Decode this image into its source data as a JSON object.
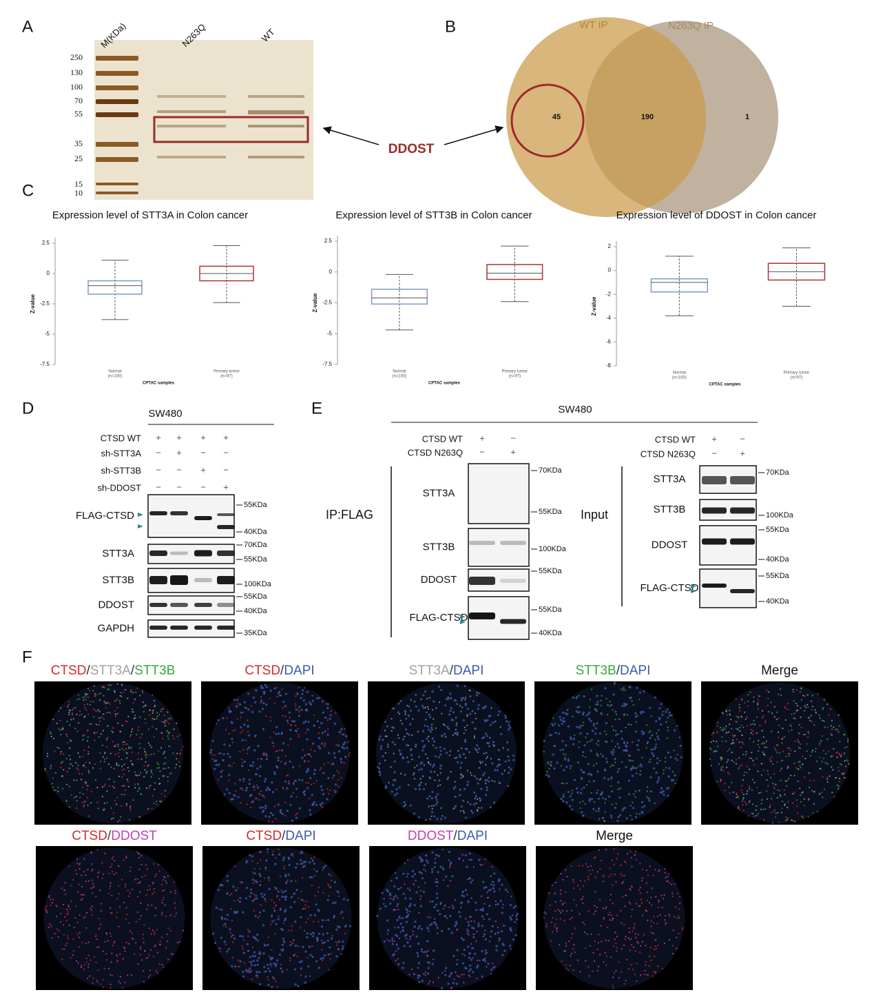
{
  "panel_labels": {
    "a": "A",
    "b": "B",
    "c": "C",
    "d": "D",
    "e": "E",
    "f": "F"
  },
  "gel": {
    "lanes": [
      "M(KDa)",
      "N263Q",
      "WT"
    ],
    "markers": [
      250,
      130,
      100,
      70,
      55,
      35,
      25,
      15,
      10
    ],
    "annotation": "DDOST"
  },
  "venn": {
    "sets": [
      "WT IP",
      "N263Q IP"
    ],
    "counts": [
      45,
      190,
      1
    ]
  },
  "chart_data": [
    {
      "type": "box",
      "title": "Expression level of STT3A in Colon cancer",
      "categories": [
        "Normal",
        "Primary tumor"
      ],
      "category_notes": [
        "(n=100)",
        "(n=97)"
      ],
      "xlabel": "CPTAC samples",
      "ylabel": "Z-value",
      "ylim": [
        -7.5,
        2.5
      ],
      "yticks": [
        2.5,
        0,
        -2.5,
        -5,
        -7.5
      ],
      "boxes": [
        {
          "color": "#7b9bc8",
          "whislo": -3.8,
          "q1": -1.7,
          "med": -1.0,
          "q3": -0.6,
          "whishi": 1.1
        },
        {
          "color": "#b0302a",
          "whislo": -2.4,
          "q1": -0.6,
          "med": 0.0,
          "q3": 0.6,
          "whishi": 2.3
        }
      ]
    },
    {
      "type": "box",
      "title": "Expression level of STT3B in Colon cancer",
      "categories": [
        "Normal",
        "Primary tumor"
      ],
      "category_notes": [
        "(n=100)",
        "(n=97)"
      ],
      "xlabel": "CPTAC samples",
      "ylabel": "Z-value",
      "ylim": [
        -7.5,
        2.5
      ],
      "yticks": [
        2.5,
        0,
        -2.5,
        -5,
        -7.5
      ],
      "boxes": [
        {
          "color": "#7b9bc8",
          "whislo": -4.7,
          "q1": -2.6,
          "med": -2.1,
          "q3": -1.4,
          "whishi": -0.2
        },
        {
          "color": "#b0302a",
          "whislo": -2.4,
          "q1": -0.6,
          "med": -0.1,
          "q3": 0.6,
          "whishi": 2.1
        }
      ]
    },
    {
      "type": "box",
      "title": "Expression level of DDOST in Colon cancer",
      "categories": [
        "Normal",
        "Primary tumor"
      ],
      "category_notes": [
        "(n=100)",
        "(n=97)"
      ],
      "xlabel": "CPTAC samples",
      "ylabel": "Z-value",
      "ylim": [
        -8,
        2
      ],
      "yticks": [
        2,
        0,
        -2,
        -4,
        -6,
        -8
      ],
      "boxes": [
        {
          "color": "#7b9bc8",
          "whislo": -3.8,
          "q1": -1.8,
          "med": -1.0,
          "q3": -0.7,
          "whishi": 1.2
        },
        {
          "color": "#b0302a",
          "whislo": -3.0,
          "q1": -0.8,
          "med": -0.1,
          "q3": 0.6,
          "whishi": 1.9
        }
      ]
    }
  ],
  "blot_d": {
    "title": "SW480",
    "conditions": [
      {
        "name": "CTSD WT",
        "signs": [
          "+",
          "+",
          "+",
          "+"
        ]
      },
      {
        "name": "sh-STT3A",
        "signs": [
          "−",
          "+",
          "−",
          "−"
        ]
      },
      {
        "name": "sh-STT3B",
        "signs": [
          "−",
          "−",
          "+",
          "−"
        ]
      },
      {
        "name": "sh-DDOST",
        "signs": [
          "−",
          "−",
          "−",
          "+"
        ]
      }
    ],
    "blots": [
      {
        "name": "FLAG-CTSD",
        "sizes": [
          "55KDa",
          "40KDa"
        ]
      },
      {
        "name": "STT3A",
        "sizes": [
          "70KDa",
          "55KDa"
        ]
      },
      {
        "name": "STT3B",
        "sizes": [
          "100KDa"
        ]
      },
      {
        "name": "DDOST",
        "sizes": [
          "55KDa",
          "40KDa"
        ]
      },
      {
        "name": "GAPDH",
        "sizes": [
          "35KDa"
        ]
      }
    ]
  },
  "blot_e": {
    "title": "SW480",
    "ip": {
      "label": "IP:FLAG",
      "conditions": [
        {
          "name": "CTSD WT",
          "signs": [
            "+",
            "−"
          ]
        },
        {
          "name": "CTSD N263Q",
          "signs": [
            "−",
            "+"
          ]
        }
      ],
      "blots": [
        {
          "name": "STT3A",
          "sizes": [
            "70KDa",
            "55KDa"
          ]
        },
        {
          "name": "STT3B",
          "sizes": [
            "100KDa"
          ]
        },
        {
          "name": "DDOST",
          "sizes": [
            "55KDa"
          ]
        },
        {
          "name": "FLAG-CTSD",
          "sizes": [
            "55KDa",
            "40KDa"
          ]
        }
      ]
    },
    "input": {
      "label": "Input",
      "conditions": [
        {
          "name": "CTSD WT",
          "signs": [
            "+",
            "−"
          ]
        },
        {
          "name": "CTSD N263Q",
          "signs": [
            "−",
            "+"
          ]
        }
      ],
      "blots": [
        {
          "name": "STT3A",
          "sizes": [
            "70KDa"
          ]
        },
        {
          "name": "STT3B",
          "sizes": [
            "100KDa"
          ]
        },
        {
          "name": "DDOST",
          "sizes": [
            "55KDa",
            "40KDa"
          ]
        },
        {
          "name": "FLAG-CTSD",
          "sizes": [
            "55KDa",
            "40KDa"
          ]
        }
      ]
    }
  },
  "images": {
    "rows": [
      [
        [
          {
            "text": "CTSD",
            "color": "#d42a2a"
          },
          {
            "text": "/",
            "color": "#333333"
          },
          {
            "text": "STT3A",
            "color": "#a0a0a0"
          },
          {
            "text": "/",
            "color": "#333333"
          },
          {
            "text": "STT3B",
            "color": "#3aa63a"
          }
        ],
        [
          {
            "text": "CTSD",
            "color": "#d42a2a"
          },
          {
            "text": "/",
            "color": "#333333"
          },
          {
            "text": "DAPI",
            "color": "#3a5aa8"
          }
        ],
        [
          {
            "text": "STT3A",
            "color": "#a0a0a0"
          },
          {
            "text": "/",
            "color": "#333333"
          },
          {
            "text": "DAPI",
            "color": "#3a5aa8"
          }
        ],
        [
          {
            "text": "STT3B",
            "color": "#3aa63a"
          },
          {
            "text": "/",
            "color": "#333333"
          },
          {
            "text": "DAPI",
            "color": "#3a5aa8"
          }
        ],
        [
          {
            "text": "Merge",
            "color": "#111111"
          }
        ]
      ],
      [
        [
          {
            "text": "CTSD",
            "color": "#d42a2a"
          },
          {
            "text": "/",
            "color": "#333333"
          },
          {
            "text": "DDOST",
            "color": "#c040b0"
          }
        ],
        [
          {
            "text": "CTSD",
            "color": "#d42a2a"
          },
          {
            "text": "/",
            "color": "#333333"
          },
          {
            "text": "DAPI",
            "color": "#3a5aa8"
          }
        ],
        [
          {
            "text": "DDOST",
            "color": "#c040b0"
          },
          {
            "text": "/",
            "color": "#333333"
          },
          {
            "text": "DAPI",
            "color": "#3a5aa8"
          }
        ],
        [
          {
            "text": "Merge",
            "color": "#111111"
          }
        ]
      ]
    ]
  }
}
